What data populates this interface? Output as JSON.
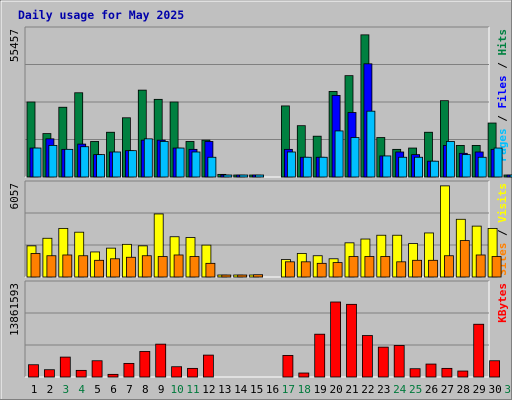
{
  "chart_data": {
    "type": "bar",
    "title": "Daily usage for May 2025",
    "categories": [
      "1",
      "2",
      "3",
      "4",
      "5",
      "6",
      "7",
      "8",
      "9",
      "10",
      "11",
      "12",
      "13",
      "14",
      "15",
      "16",
      "17",
      "18",
      "19",
      "20",
      "21",
      "22",
      "23",
      "24",
      "25",
      "26",
      "27",
      "28",
      "29",
      "30",
      "31"
    ],
    "weekend_days": [
      "3",
      "4",
      "10",
      "11",
      "17",
      "18",
      "24",
      "25",
      "31"
    ],
    "panels": [
      {
        "id": "hits",
        "ymax_label": "55457",
        "ymax": 55457,
        "series_labels": [
          "Pages",
          "Files",
          "Hits"
        ],
        "series": [
          {
            "name": "Hits",
            "color": "#008040",
            "values": [
              28500,
              16500,
              26500,
              32000,
              13500,
              17000,
              22500,
              33000,
              29500,
              28500,
              13500,
              14000,
              1000,
              700,
              700,
              0,
              27000,
              19500,
              15500,
              32500,
              38500,
              54000,
              15000,
              10500,
              11000,
              17000,
              29000,
              12000,
              12000,
              20500,
              700
            ]
          },
          {
            "name": "Files",
            "color": "#0000ff",
            "values": [
              11000,
              14500,
              10500,
              12500,
              8500,
              9500,
              10000,
              14000,
              14000,
              11000,
              10500,
              13500,
              500,
              500,
              500,
              0,
              10500,
              7500,
              7500,
              31000,
              24500,
              43000,
              8000,
              9500,
              8500,
              6000,
              12000,
              9000,
              9500,
              10500,
              400
            ]
          },
          {
            "name": "Pages",
            "color": "#00c0ff",
            "values": [
              11000,
              12000,
              10500,
              11500,
              8500,
              9500,
              10000,
              14500,
              13500,
              11000,
              9500,
              7500,
              400,
              400,
              400,
              0,
              9500,
              7500,
              7500,
              17500,
              15000,
              25000,
              8000,
              7500,
              7500,
              6000,
              13500,
              8500,
              7500,
              11000,
              300
            ]
          }
        ]
      },
      {
        "id": "visits",
        "ymax_label": "6057",
        "ymax": 6057,
        "series_labels": [
          "Sites",
          "Visits"
        ],
        "series": [
          {
            "name": "Visits",
            "color": "#ffff00",
            "values": [
              2050,
              2550,
              3200,
              2950,
              1650,
              1900,
              2150,
              2050,
              4150,
              2650,
              2600,
              2100,
              100,
              100,
              100,
              0,
              1150,
              1550,
              1400,
              1200,
              2250,
              2500,
              2750,
              2750,
              2200,
              2900,
              6000,
              3800,
              3350,
              3200,
              0
            ]
          },
          {
            "name": "Sites",
            "color": "#ff8000",
            "values": [
              1550,
              1400,
              1450,
              1400,
              1100,
              1200,
              1300,
              1400,
              1350,
              1450,
              1350,
              900,
              80,
              80,
              150,
              0,
              1000,
              1000,
              900,
              950,
              1350,
              1350,
              1350,
              1000,
              1100,
              1100,
              1400,
              2400,
              1450,
              1350,
              0
            ]
          }
        ]
      },
      {
        "id": "kbytes",
        "ymax_label": "13861593",
        "ymax": 13861593,
        "series_labels": [
          "KBytes"
        ],
        "series": [
          {
            "name": "KBytes",
            "color": "#ff0000",
            "values": [
              1850000,
              1100000,
              3000000,
              1000000,
              2450000,
              400000,
              2050000,
              3850000,
              4950000,
              1550000,
              1300000,
              3300000,
              0,
              0,
              0,
              0,
              3250000,
              600000,
              6450000,
              11300000,
              10950000,
              6250000,
              4500000,
              4750000,
              1250000,
              1950000,
              1300000,
              900000,
              7950000,
              2450000,
              0
            ]
          }
        ]
      }
    ]
  }
}
